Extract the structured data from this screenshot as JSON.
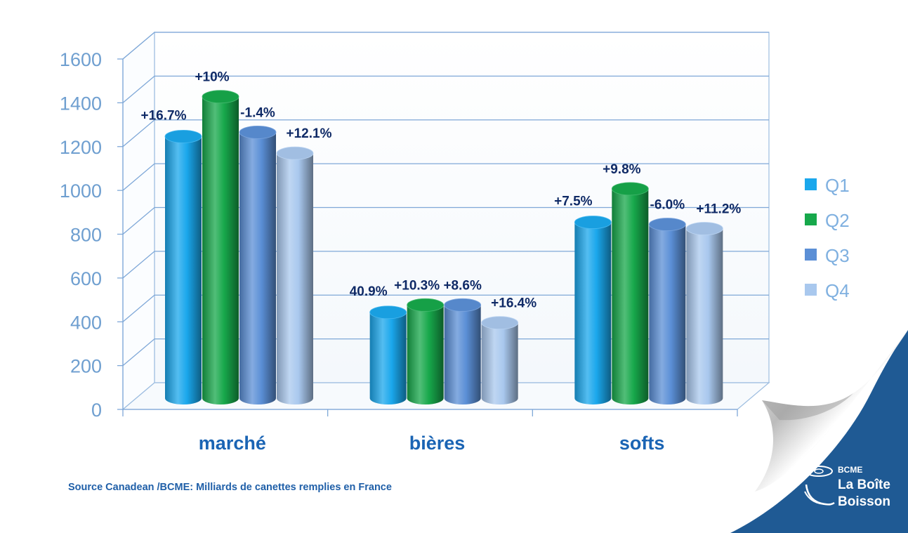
{
  "chart_data": {
    "type": "bar",
    "categories": [
      "marché",
      "bières",
      "softs"
    ],
    "series": [
      {
        "name": "Q1",
        "color": "#1aa7ec",
        "values": [
          1250,
          410,
          840
        ],
        "labels": [
          "+16.7%",
          "40.9%",
          "+7.5%"
        ]
      },
      {
        "name": "Q2",
        "color": "#17a84b",
        "values": [
          1440,
          445,
          1000
        ],
        "labels": [
          "+10%",
          "+10.3%",
          "+9.8%"
        ]
      },
      {
        "name": "Q3",
        "color": "#5b8fd6",
        "values": [
          1270,
          445,
          830
        ],
        "labels": [
          "-1.4%",
          "+8.6%",
          "-6.0%"
        ]
      },
      {
        "name": "Q4",
        "color": "#a9c8ee",
        "values": [
          1170,
          360,
          810
        ],
        "labels": [
          "+12.1%",
          "+16.4%",
          "+11.2%"
        ]
      }
    ],
    "yticks": [
      "0",
      "200",
      "400",
      "600",
      "800",
      "1000",
      "1200",
      "1400",
      "1600"
    ],
    "ylim": [
      0,
      1600
    ],
    "grid": true,
    "legend_position": "right"
  },
  "footer": {
    "source": "Source Canadean /BCME: Milliards de canettes remplies en France"
  },
  "logo": {
    "brand": "BCME",
    "line1": "La Boîte",
    "line2": "Boisson"
  }
}
